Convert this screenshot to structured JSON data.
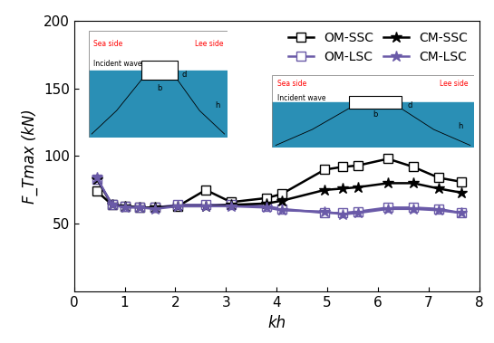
{
  "chart_data": {
    "type": "line",
    "x_label": "kh",
    "y_label": "F_Tmax (kN)",
    "xlim": [
      0,
      8
    ],
    "xticks": [
      0,
      1,
      2,
      3,
      4,
      5,
      6,
      7,
      8
    ],
    "ylim": [
      0,
      200
    ],
    "yticks": [
      50,
      100,
      150,
      200
    ],
    "legend": "upper right",
    "x": [
      0.45,
      0.75,
      1.0,
      1.3,
      1.6,
      2.05,
      2.6,
      3.1,
      3.8,
      4.1,
      4.95,
      5.3,
      5.6,
      6.2,
      6.7,
      7.2,
      7.65
    ],
    "series": [
      {
        "name": "OM-SSC",
        "color": "#000000",
        "marker": "square",
        "values": [
          74,
          64,
          63,
          62,
          62,
          63,
          75,
          66,
          69,
          72,
          90,
          92,
          93,
          98,
          92,
          84,
          81
        ]
      },
      {
        "name": "OM-LSC",
        "color": "#6a5aa8",
        "marker": "square",
        "values": [
          83,
          64,
          63,
          62,
          62,
          64,
          64,
          64,
          63,
          61,
          58,
          58,
          59,
          62,
          62,
          61,
          58
        ]
      },
      {
        "name": "CM-SSC",
        "color": "#000000",
        "marker": "star",
        "values": [
          83,
          64,
          63,
          62,
          62,
          63,
          63,
          64,
          65,
          67,
          75,
          76,
          77,
          80,
          80,
          76,
          73
        ]
      },
      {
        "name": "CM-LSC",
        "color": "#6a5aa8",
        "marker": "star",
        "values": [
          84,
          64,
          62,
          62,
          61,
          63,
          63,
          63,
          62,
          60,
          59,
          57,
          58,
          61,
          61,
          60,
          58
        ]
      }
    ],
    "insets": [
      {
        "texts": [
          "Sea side",
          "Lee side",
          "Incident wave",
          "b",
          "d",
          "h"
        ]
      },
      {
        "texts": [
          "Sea side",
          "Lee side",
          "Incident wave",
          "b",
          "d",
          "h"
        ]
      }
    ]
  }
}
